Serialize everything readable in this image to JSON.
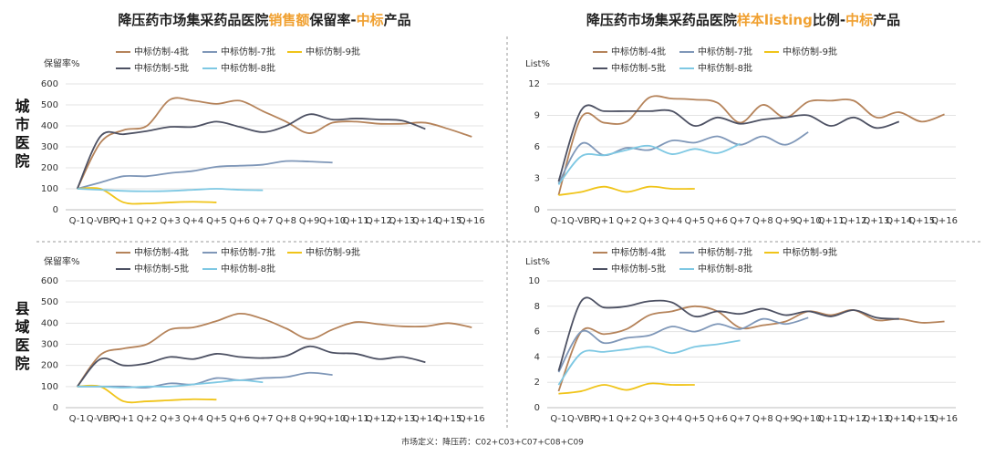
{
  "row_labels": [
    "城市医院",
    "县域医院"
  ],
  "footnote": "市场定义：降压药：C02+C03+C07+C08+C09",
  "chart_data": [
    {
      "type": "line",
      "title": [
        {
          "text": "降压药市场集采药品医院",
          "color": "#222222"
        },
        {
          "text": "销售额",
          "color": "#f0a030"
        },
        {
          "text": "保留率-",
          "color": "#222222"
        },
        {
          "text": "中标",
          "color": "#f0a030"
        },
        {
          "text": "产品",
          "color": "#222222"
        }
      ],
      "y_label": "保留率%",
      "categories": [
        "Q-1",
        "Q-VBP",
        "Q+1",
        "Q+2",
        "Q+3",
        "Q+4",
        "Q+5",
        "Q+6",
        "Q+7",
        "Q+8",
        "Q+9",
        "Q+10",
        "Q+11",
        "Q+12",
        "Q+13",
        "Q+14",
        "Q+15",
        "Q+16"
      ],
      "ylim": [
        0,
        600
      ],
      "yticks": [
        0,
        100,
        200,
        300,
        400,
        500,
        600
      ],
      "grid": true,
      "series": [
        {
          "name": "中标仿制-4批",
          "color": "#b5835a",
          "values": [
            100,
            320,
            380,
            400,
            525,
            520,
            505,
            520,
            470,
            420,
            365,
            415,
            420,
            410,
            410,
            415,
            385,
            348
          ]
        },
        {
          "name": "中标仿制-7批",
          "color": "#7f97b8",
          "values": [
            100,
            130,
            160,
            160,
            175,
            185,
            205,
            210,
            215,
            232,
            230,
            225,
            null,
            null,
            null,
            null,
            null,
            null
          ]
        },
        {
          "name": "中标仿制-9批",
          "color": "#f0c419",
          "values": [
            100,
            100,
            35,
            30,
            35,
            38,
            35,
            null,
            null,
            null,
            null,
            null,
            null,
            null,
            null,
            null,
            null,
            null
          ]
        },
        {
          "name": "中标仿制-5批",
          "color": "#4d5163",
          "values": [
            100,
            350,
            360,
            375,
            395,
            395,
            420,
            395,
            370,
            400,
            455,
            430,
            435,
            430,
            425,
            385,
            null,
            null
          ]
        },
        {
          "name": "中标仿制-8批",
          "color": "#7ec8e3",
          "values": [
            100,
            95,
            90,
            88,
            90,
            95,
            100,
            95,
            93,
            null,
            null,
            null,
            null,
            null,
            null,
            null,
            null,
            null
          ]
        }
      ]
    },
    {
      "type": "line",
      "title": [
        {
          "text": "降压药市场集采药品医院",
          "color": "#222222"
        },
        {
          "text": "样本listing",
          "color": "#f0a030"
        },
        {
          "text": "比例-",
          "color": "#222222"
        },
        {
          "text": "中标",
          "color": "#f0a030"
        },
        {
          "text": "产品",
          "color": "#222222"
        }
      ],
      "y_label": "List%",
      "categories": [
        "Q-1",
        "Q-VBP",
        "Q+1",
        "Q+2",
        "Q+3",
        "Q+4",
        "Q+5",
        "Q+6",
        "Q+7",
        "Q+8",
        "Q+9",
        "Q+10",
        "Q+11",
        "Q+12",
        "Q+13",
        "Q+14",
        "Q+15",
        "Q+16"
      ],
      "ylim": [
        0,
        12
      ],
      "yticks": [
        0,
        3,
        6,
        9,
        12
      ],
      "grid": true,
      "series": [
        {
          "name": "中标仿制-4批",
          "color": "#b5835a",
          "values": [
            1.4,
            8.8,
            8.3,
            8.4,
            10.7,
            10.6,
            10.5,
            10.2,
            8.3,
            10,
            8.8,
            10.3,
            10.4,
            10.4,
            8.8,
            9.3,
            8.4,
            9.1
          ]
        },
        {
          "name": "中标仿制-7批",
          "color": "#7f97b8",
          "values": [
            2.5,
            6.3,
            5.2,
            5.9,
            5.7,
            6.6,
            6.4,
            7.0,
            6.2,
            7.0,
            6.2,
            7.4,
            null,
            null,
            null,
            null,
            null,
            null
          ]
        },
        {
          "name": "中标仿制-9批",
          "color": "#f0c419",
          "values": [
            1.4,
            1.7,
            2.2,
            1.7,
            2.2,
            2.0,
            2.0,
            null,
            null,
            null,
            null,
            null,
            null,
            null,
            null,
            null,
            null,
            null
          ]
        },
        {
          "name": "中标仿制-5批",
          "color": "#4d5163",
          "values": [
            2.7,
            9.5,
            9.4,
            9.4,
            9.4,
            9.4,
            8.0,
            8.8,
            8.2,
            8.6,
            8.8,
            9.0,
            8.0,
            8.8,
            7.8,
            8.4,
            null,
            null
          ]
        },
        {
          "name": "中标仿制-8批",
          "color": "#7ec8e3",
          "values": [
            2.4,
            5.1,
            5.2,
            5.7,
            6.1,
            5.3,
            5.8,
            5.4,
            6.3,
            null,
            null,
            null,
            null,
            null,
            null,
            null,
            null,
            null
          ]
        }
      ]
    },
    {
      "type": "line",
      "y_label": "保留率%",
      "categories": [
        "Q-1",
        "Q-VBP",
        "Q+1",
        "Q+2",
        "Q+3",
        "Q+4",
        "Q+5",
        "Q+6",
        "Q+7",
        "Q+8",
        "Q+9",
        "Q+10",
        "Q+11",
        "Q+12",
        "Q+13",
        "Q+14",
        "Q+15",
        "Q+16"
      ],
      "ylim": [
        0,
        600
      ],
      "yticks": [
        0,
        100,
        200,
        300,
        400,
        500,
        600
      ],
      "grid": true,
      "series": [
        {
          "name": "中标仿制-4批",
          "color": "#b5835a",
          "values": [
            100,
            250,
            280,
            300,
            370,
            380,
            410,
            445,
            420,
            375,
            325,
            370,
            405,
            395,
            385,
            385,
            400,
            380
          ]
        },
        {
          "name": "中标仿制-7批",
          "color": "#7f97b8",
          "values": [
            100,
            100,
            100,
            95,
            115,
            110,
            140,
            130,
            140,
            145,
            165,
            155,
            null,
            null,
            null,
            null,
            null,
            null
          ]
        },
        {
          "name": "中标仿制-9批",
          "color": "#f0c419",
          "values": [
            100,
            100,
            30,
            30,
            35,
            40,
            38,
            null,
            null,
            null,
            null,
            null,
            null,
            null,
            null,
            null,
            null,
            null
          ]
        },
        {
          "name": "中标仿制-5批",
          "color": "#4d5163",
          "values": [
            100,
            230,
            200,
            210,
            240,
            230,
            255,
            240,
            235,
            245,
            290,
            260,
            255,
            230,
            240,
            215,
            null,
            null
          ]
        },
        {
          "name": "中标仿制-8批",
          "color": "#7ec8e3",
          "values": [
            100,
            100,
            95,
            100,
            100,
            110,
            120,
            130,
            120,
            null,
            null,
            null,
            null,
            null,
            null,
            null,
            null,
            null
          ]
        }
      ]
    },
    {
      "type": "line",
      "y_label": "List%",
      "categories": [
        "Q-1",
        "Q-VBP",
        "Q+1",
        "Q+2",
        "Q+3",
        "Q+4",
        "Q+5",
        "Q+6",
        "Q+7",
        "Q+8",
        "Q+9",
        "Q+10",
        "Q+11",
        "Q+12",
        "Q+13",
        "Q+14",
        "Q+15",
        "Q+16"
      ],
      "ylim": [
        0,
        10
      ],
      "yticks": [
        0,
        2,
        4,
        6,
        8,
        10
      ],
      "grid": true,
      "series": [
        {
          "name": "中标仿制-4批",
          "color": "#b5835a",
          "values": [
            1.3,
            6.0,
            5.8,
            6.2,
            7.3,
            7.6,
            8.0,
            7.6,
            6.3,
            6.5,
            6.8,
            7.6,
            7.3,
            7.7,
            6.9,
            7.0,
            6.7,
            6.8
          ]
        },
        {
          "name": "中标仿制-7批",
          "color": "#7f97b8",
          "values": [
            2.8,
            6.0,
            5.1,
            5.5,
            5.7,
            6.4,
            6.0,
            6.6,
            6.2,
            7.0,
            6.6,
            7.1,
            null,
            null,
            null,
            null,
            null,
            null
          ]
        },
        {
          "name": "中标仿制-9批",
          "color": "#f0c419",
          "values": [
            1.1,
            1.3,
            1.8,
            1.4,
            1.9,
            1.8,
            1.8,
            null,
            null,
            null,
            null,
            null,
            null,
            null,
            null,
            null,
            null,
            null
          ]
        },
        {
          "name": "中标仿制-5批",
          "color": "#4d5163",
          "values": [
            2.9,
            8.4,
            7.9,
            8.0,
            8.4,
            8.3,
            7.2,
            7.6,
            7.4,
            7.8,
            7.3,
            7.6,
            7.2,
            7.7,
            7.1,
            7.0,
            null,
            null
          ]
        },
        {
          "name": "中标仿制-8批",
          "color": "#7ec8e3",
          "values": [
            1.8,
            4.3,
            4.4,
            4.6,
            4.8,
            4.3,
            4.8,
            5.0,
            5.3,
            null,
            null,
            null,
            null,
            null,
            null,
            null,
            null,
            null
          ]
        }
      ]
    }
  ]
}
